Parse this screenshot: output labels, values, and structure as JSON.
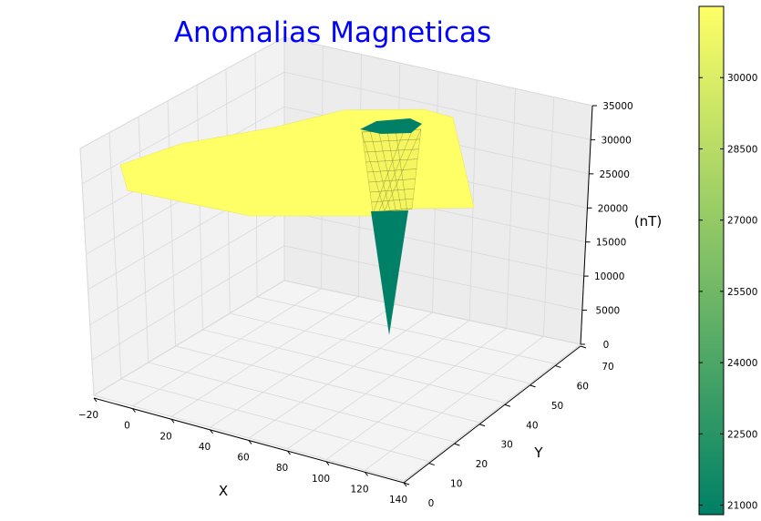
{
  "chart_data": {
    "type": "surface3d",
    "title": "Anomalias Magneticas",
    "xlabel": "X",
    "ylabel": "Y",
    "zlabel": "(nT)",
    "x_ticks": [
      "−20",
      "0",
      "20",
      "40",
      "60",
      "80",
      "100",
      "120",
      "140"
    ],
    "y_ticks": [
      "0",
      "10",
      "20",
      "30",
      "40",
      "50",
      "60",
      "70"
    ],
    "z_ticks": [
      "0",
      "5000",
      "10000",
      "15000",
      "20000",
      "25000",
      "30000",
      "35000"
    ],
    "xlim": [
      -20,
      140
    ],
    "ylim": [
      0,
      70
    ],
    "zlim": [
      0,
      35000
    ],
    "grid": true,
    "colormap": [
      "#008066",
      "#ffff66"
    ],
    "surface": {
      "plateau_value": 30500,
      "anomaly_min": 0,
      "anomaly_rim_value": 21000
    },
    "colorbar": {
      "ticks": [
        "21000",
        "22500",
        "24000",
        "25500",
        "27000",
        "28500",
        "30000"
      ],
      "range": [
        20800,
        31500
      ]
    }
  }
}
